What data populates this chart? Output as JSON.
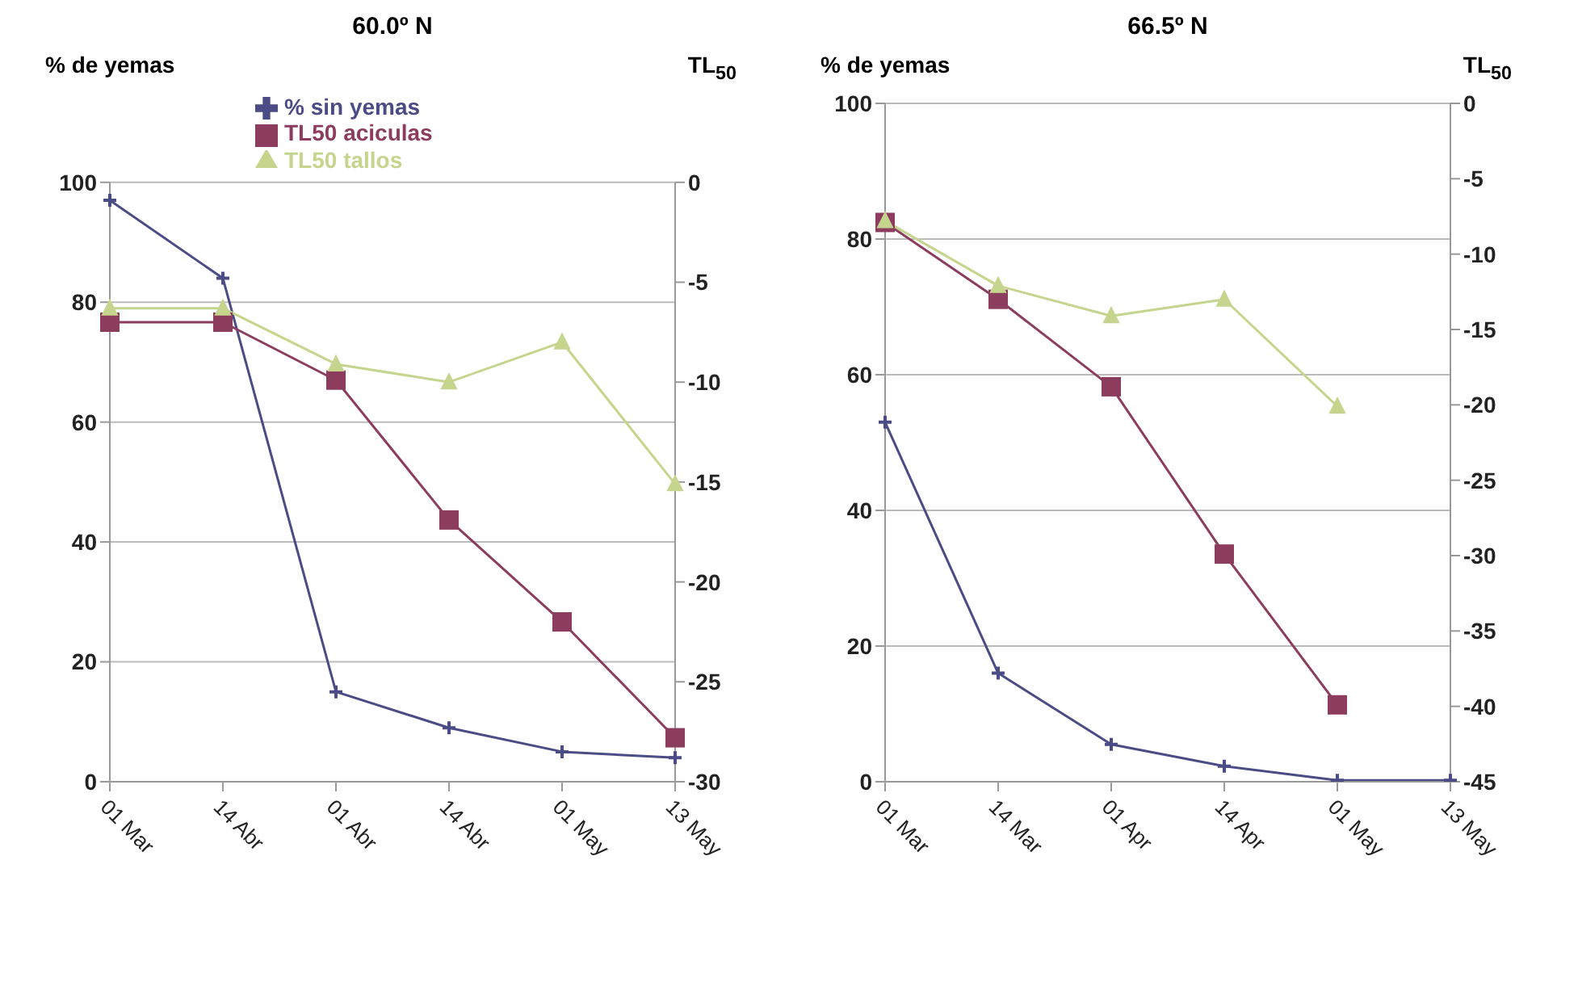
{
  "chart_data": [
    {
      "type": "line",
      "title": "60.0º N",
      "ylabel": "% de yemas",
      "y2label": "TL$_{50}$",
      "categories": [
        "01 Mar",
        "14 Abr",
        "01 Abr",
        "14 Abr",
        "01 May",
        "13 May"
      ],
      "series": [
        {
          "name": "% sin yemas",
          "color": "#4b4b85",
          "marker": "cross",
          "values": [
            97,
            84,
            15,
            9,
            5,
            4
          ]
        },
        {
          "name": "TL50 aciculas",
          "color": "#8c3d5e",
          "marker": "square",
          "axis": "y2",
          "values": [
            -7,
            -7,
            -9.9,
            -16.9,
            -22,
            -27.8
          ]
        },
        {
          "name": "TL50 tallos",
          "color": "#c5d58e",
          "marker": "triangle",
          "axis": "y2",
          "values": [
            -6.3,
            -6.3,
            -9.1,
            -10,
            -8,
            -15.1
          ]
        }
      ],
      "ylim": [
        0,
        100
      ],
      "yticks": [
        0,
        20,
        40,
        60,
        80,
        100
      ],
      "y2lim": [
        -30,
        0
      ],
      "y2ticks": [
        -30,
        -25,
        -20,
        -15,
        -10,
        -5,
        0
      ],
      "grid": "y",
      "legend": "top"
    },
    {
      "type": "line",
      "title": "66.5º N",
      "ylabel": "% de yemas",
      "y2label": "TL$_{50}$",
      "categories": [
        "01 Mar",
        "14 Mar",
        "01 Apr",
        "14 Apr",
        "01 May",
        "13 May"
      ],
      "series": [
        {
          "color": "#4b4b85",
          "marker": "cross",
          "values": [
            53,
            16,
            5.5,
            2.3,
            0.2,
            0.2
          ]
        },
        {
          "color": "#8c3d5e",
          "marker": "square",
          "axis": "y2",
          "values": [
            -7.9,
            -13,
            -18.8,
            -29.9,
            -39.9,
            null
          ]
        },
        {
          "color": "#c5d58e",
          "marker": "triangle",
          "axis": "y2",
          "values": [
            -7.8,
            -12.1,
            -14.1,
            -13,
            -20.1,
            null
          ]
        }
      ],
      "ylim": [
        0,
        100
      ],
      "yticks": [
        0,
        20,
        40,
        60,
        80,
        100
      ],
      "y2lim": [
        -45,
        0
      ],
      "y2ticks": [
        -45,
        -40,
        -35,
        -30,
        -25,
        -20,
        -15,
        -10,
        -5,
        0
      ],
      "grid": "y"
    }
  ]
}
